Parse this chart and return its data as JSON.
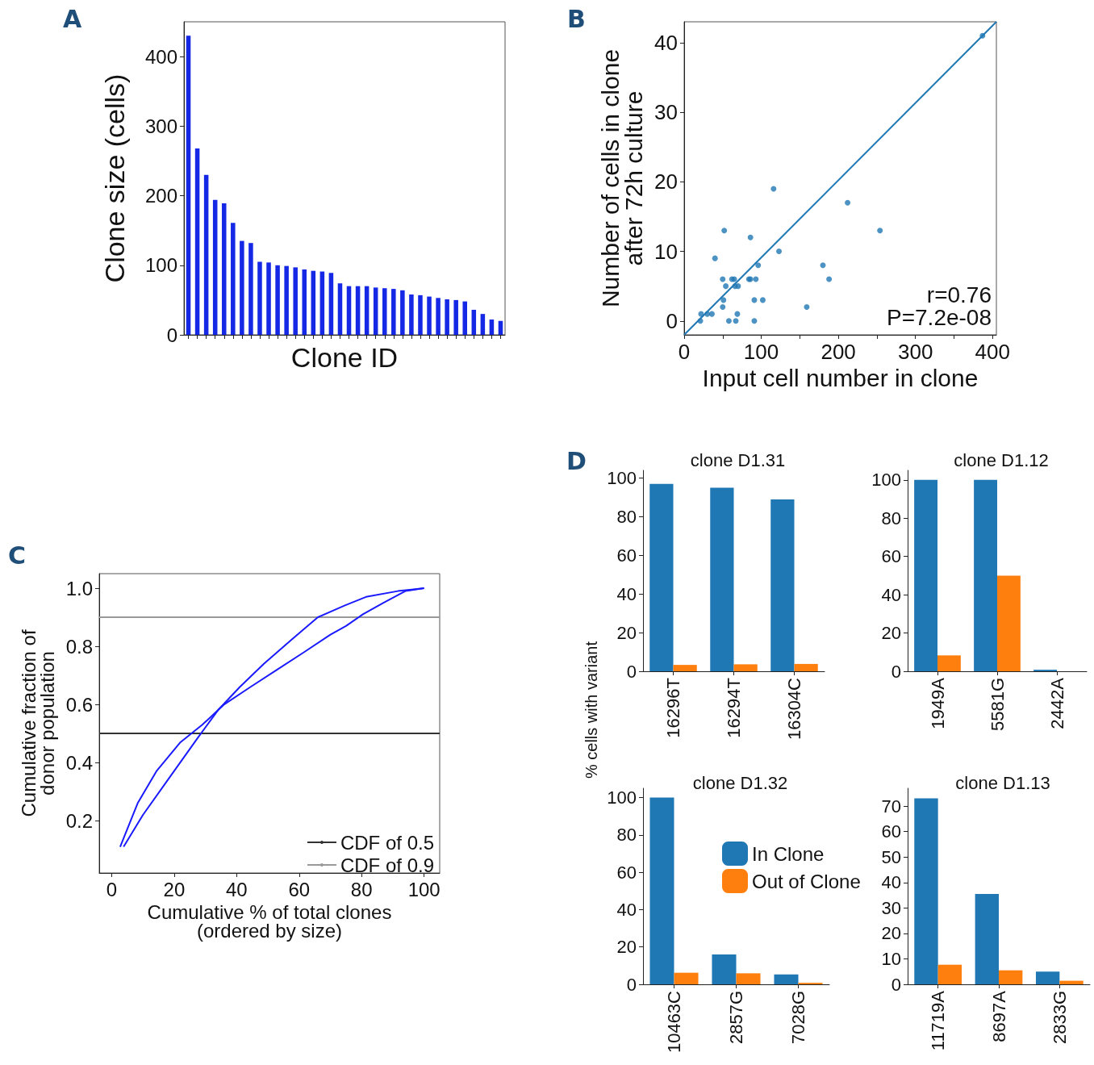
{
  "chart_data": [
    {
      "type": "bar",
      "annotations": [
        "A"
      ],
      "xlabel": "Clone ID",
      "ylabel": "Clone size (cells)",
      "categories": [
        null,
        null,
        null,
        null,
        null,
        null,
        null,
        null,
        null,
        null,
        null,
        null,
        null,
        null,
        null,
        null,
        null,
        null,
        null,
        null,
        null,
        null,
        null,
        null,
        null,
        null,
        null,
        null,
        null,
        null,
        null,
        null,
        null,
        null,
        null,
        null
      ],
      "values": [
        430,
        268,
        230,
        194,
        189,
        161,
        135,
        132,
        105,
        104,
        100,
        99,
        97,
        94,
        92,
        91,
        89,
        74,
        70,
        70,
        70,
        68,
        67,
        66,
        64,
        58,
        57,
        55,
        53,
        51,
        50,
        48,
        36,
        30,
        22,
        20
      ],
      "color": "#1428e6",
      "ylim": [
        0,
        450
      ],
      "yticks": [
        0,
        100,
        200,
        300,
        400
      ],
      "grid": false
    },
    {
      "type": "scatter",
      "annotations": [
        "B",
        "r=0.76",
        "P=7.2e-08"
      ],
      "xlabel": "Input cell number in clone",
      "ylabel": "Number of cells in clone\nafter 72h culture",
      "xlim": [
        0,
        405
      ],
      "ylim": [
        -2,
        43
      ],
      "xticks": [
        0,
        {
          "value": 50,
          "label": null
        },
        100,
        {
          "value": 150,
          "label": null
        },
        200,
        {
          "value": 250,
          "label": null
        },
        300,
        {
          "value": 350,
          "label": null
        },
        400
      ],
      "yticks": [
        0,
        10,
        20,
        30,
        40
      ],
      "grid": false,
      "series": [
        {
          "type": "scatter",
          "marker": "circle",
          "color": "#1f77b4",
          "x": [
            387,
            116,
            212,
            254,
            52,
            86,
            40,
            123,
            96,
            180,
            188,
            50,
            62,
            65,
            84,
            86,
            93,
            54,
            66,
            70,
            51,
            91,
            102,
            50,
            159,
            22,
            30,
            36,
            69,
            21,
            58,
            67,
            91
          ],
          "values": [
            41,
            19,
            17,
            13,
            13,
            12,
            9,
            10,
            8,
            8,
            6,
            6,
            6,
            6,
            6,
            6,
            6,
            5,
            5,
            5,
            3,
            3,
            3,
            2,
            2,
            1,
            1,
            1,
            1,
            0,
            0,
            0,
            0
          ]
        },
        {
          "type": "line",
          "marker": "none",
          "color": "#1f77b4",
          "x": [
            0,
            405
          ],
          "values": [
            -2,
            43
          ]
        }
      ]
    },
    {
      "type": "line",
      "annotations": [
        "C"
      ],
      "xlabel": "Cumulative % of total clones\n(ordered by size)",
      "ylabel": "Cumulative fraction of\ndonor population",
      "xlim": [
        -4,
        105
      ],
      "ylim": [
        0.02,
        1.05
      ],
      "xticks": [
        0,
        20,
        40,
        60,
        80,
        100
      ],
      "yticks": [
        0.2,
        0.4,
        0.6,
        0.8,
        {
          "value": 1,
          "label": "1.0"
        }
      ],
      "grid": false,
      "marker": "none",
      "legend": "bottom right",
      "series": [
        {
          "color": "#1a1aff",
          "x": [
            2.7,
            8.3,
            14.3,
            22,
            29,
            36,
            44.4,
            53,
            61.6,
            70,
            75,
            80.4,
            87,
            94,
            100
          ],
          "values": [
            0.11,
            0.26,
            0.37,
            0.47,
            0.53,
            0.6,
            0.66,
            0.72,
            0.78,
            0.84,
            0.87,
            0.91,
            0.95,
            0.99,
            1.0
          ]
        },
        {
          "color": "#1a1aff",
          "x": [
            3.8,
            10,
            18.6,
            27.2,
            34,
            41,
            48.7,
            57.3,
            61.6,
            66,
            74.5,
            81.4,
            91.6,
            100
          ],
          "values": [
            0.11,
            0.22,
            0.35,
            0.48,
            0.58,
            0.66,
            0.74,
            0.82,
            0.86,
            0.9,
            0.94,
            0.97,
            0.99,
            1.0
          ]
        }
      ],
      "ref_lines": [
        {
          "axis": "y",
          "value": 0.5,
          "label": "CDF of 0.5",
          "color": "#333333"
        },
        {
          "axis": "y",
          "value": 0.9,
          "label": "CDF of 0.9",
          "color": "#999999"
        }
      ]
    },
    {
      "type": "bar",
      "annotations": [
        "D"
      ],
      "title": "clone D1.31",
      "ylabel": "% cells with variant",
      "categories": [
        "16296T",
        "16294T",
        "16304C"
      ],
      "ylim": [
        0,
        104
      ],
      "yticks": [
        0,
        20,
        40,
        60,
        80,
        100
      ],
      "grid": false,
      "series": [
        {
          "color": "#1f77b4",
          "values": [
            97,
            95,
            89
          ]
        },
        {
          "color": "#ff7f0e",
          "values": [
            3.3,
            3.6,
            3.8
          ]
        }
      ]
    },
    {
      "type": "bar",
      "title": "clone D1.12",
      "categories": [
        "1949A",
        "5581G",
        "2442A"
      ],
      "ylim": [
        0,
        105
      ],
      "yticks": [
        0,
        20,
        40,
        60,
        80,
        100
      ],
      "grid": false,
      "series": [
        {
          "color": "#1f77b4",
          "values": [
            100,
            100,
            0.8
          ]
        },
        {
          "color": "#ff7f0e",
          "values": [
            8.3,
            50,
            0
          ]
        }
      ]
    },
    {
      "type": "bar",
      "title": "clone D1.32",
      "categories": [
        "10463C",
        "2857G",
        "7028G"
      ],
      "ylim": [
        0,
        105
      ],
      "yticks": [
        0,
        20,
        40,
        60,
        80,
        100
      ],
      "grid": false,
      "legend": "top right",
      "series": [
        {
          "name": "In Clone",
          "color": "#1f77b4",
          "values": [
            100,
            16,
            5.3
          ]
        },
        {
          "name": "Out of Clone",
          "color": "#ff7f0e",
          "values": [
            6.2,
            5.9,
            0.8
          ]
        }
      ]
    },
    {
      "type": "bar",
      "title": "clone D1.13",
      "categories": [
        "11719A",
        "8697A",
        "2833G"
      ],
      "ylim": [
        0,
        77
      ],
      "yticks": [
        0,
        10,
        20,
        30,
        40,
        50,
        60,
        70
      ],
      "grid": false,
      "series": [
        {
          "color": "#1f77b4",
          "values": [
            73,
            35.5,
            5
          ]
        },
        {
          "color": "#ff7f0e",
          "values": [
            7.7,
            5.5,
            1.4
          ]
        }
      ]
    }
  ]
}
